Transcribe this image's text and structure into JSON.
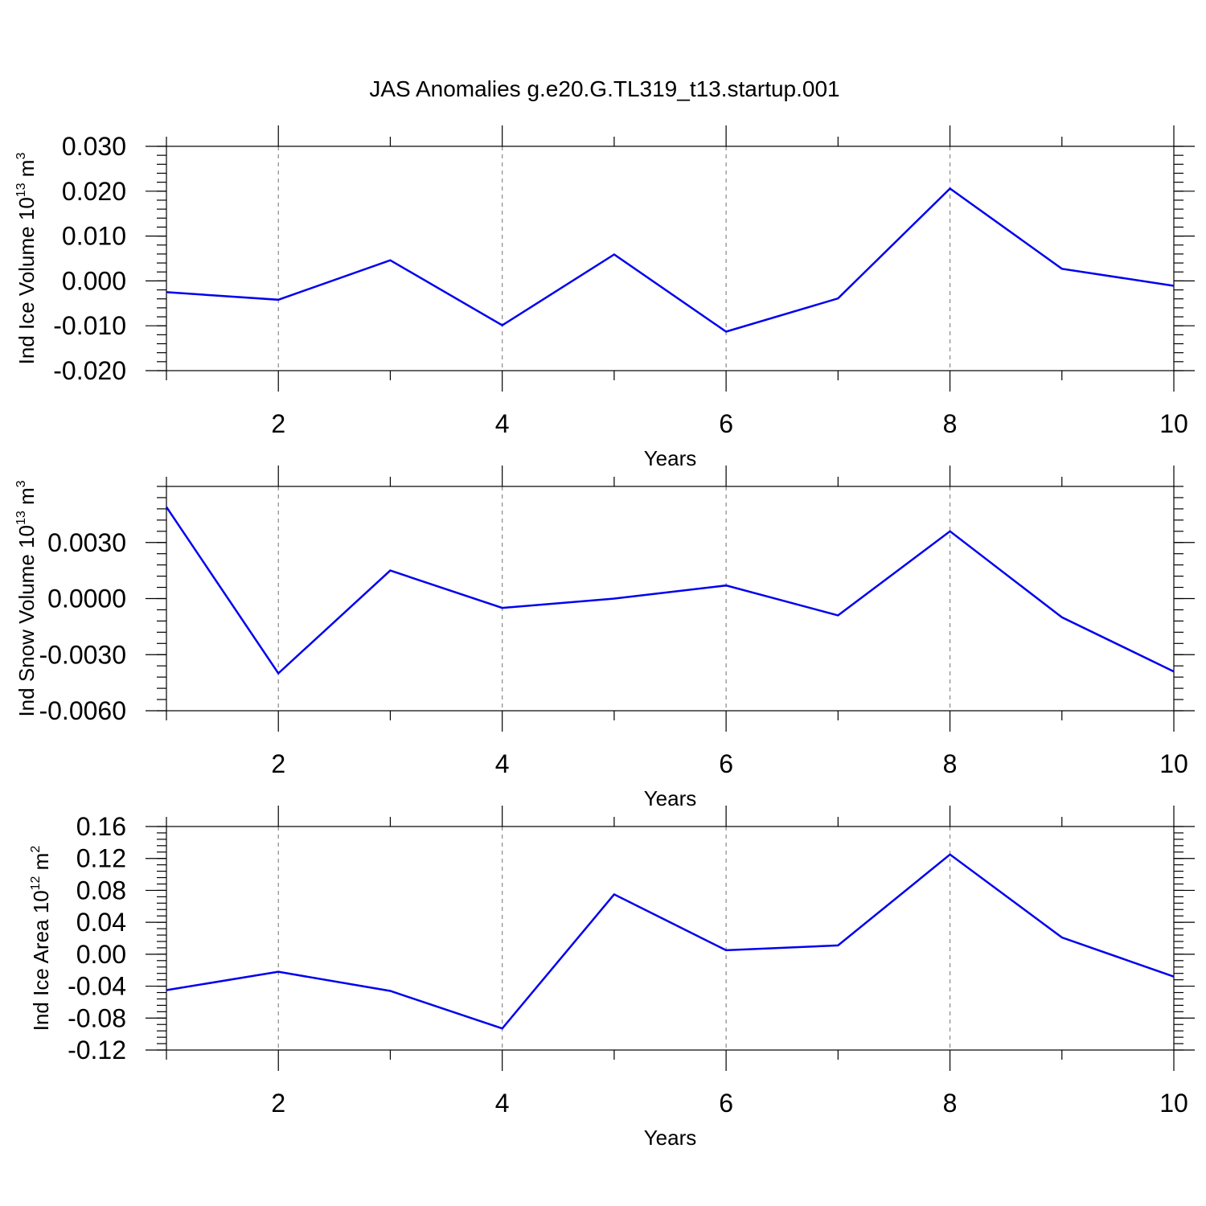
{
  "chart_data": [
    {
      "type": "line",
      "title": "JAS Anomalies g.e20.G.TL319_t13.startup.001",
      "xlabel": "Years",
      "ylabel_main": "Ind Ice Volume 10",
      "ylabel_exp": "13",
      "ylabel_unit": "m",
      "ylabel_unit_exp": "3",
      "xlim": [
        1,
        10
      ],
      "ylim": [
        -0.02,
        0.03
      ],
      "x_ticks": [
        2,
        4,
        6,
        8,
        10
      ],
      "x_tick_labels": [
        "2",
        "4",
        "6",
        "8",
        "10"
      ],
      "y_ticks": [
        -0.02,
        -0.01,
        0.0,
        0.01,
        0.02,
        0.03
      ],
      "y_tick_labels": [
        "-0.020",
        "-0.010",
        "0.000",
        "0.010",
        "0.020",
        "0.030"
      ],
      "y_minor_step": 0.002,
      "x": [
        1,
        2,
        3,
        4,
        5,
        6,
        7,
        8,
        9,
        10
      ],
      "series": [
        {
          "name": "Ind Ice Volume",
          "values": [
            -0.0025,
            -0.0042,
            0.0046,
            -0.0099,
            0.0059,
            -0.0113,
            -0.0039,
            0.0206,
            0.0027,
            -0.0011
          ]
        }
      ],
      "grid": "vertical-dashed"
    },
    {
      "type": "line",
      "xlabel": "Years",
      "ylabel_main": "Ind Snow Volume 10",
      "ylabel_exp": "13",
      "ylabel_unit": "m",
      "ylabel_unit_exp": "3",
      "xlim": [
        1,
        10
      ],
      "ylim": [
        -0.006,
        0.006
      ],
      "x_ticks": [
        2,
        4,
        6,
        8,
        10
      ],
      "x_tick_labels": [
        "2",
        "4",
        "6",
        "8",
        "10"
      ],
      "y_ticks": [
        -0.006,
        -0.003,
        0.0,
        0.003
      ],
      "y_tick_labels": [
        "-0.0060",
        "-0.0030",
        "0.0000",
        "0.0030"
      ],
      "y_minor_step": 0.0006,
      "x": [
        1,
        2,
        3,
        4,
        5,
        6,
        7,
        8,
        9,
        10
      ],
      "series": [
        {
          "name": "Ind Snow Volume",
          "values": [
            0.0049,
            -0.004,
            0.0015,
            -0.0005,
            0.0,
            0.0007,
            -0.0009,
            0.0036,
            -0.001,
            -0.0039
          ]
        }
      ],
      "grid": "vertical-dashed"
    },
    {
      "type": "line",
      "xlabel": "Years",
      "ylabel_main": "Ind Ice Area 10",
      "ylabel_exp": "12",
      "ylabel_unit": "m",
      "ylabel_unit_exp": "2",
      "xlim": [
        1,
        10
      ],
      "ylim": [
        -0.12,
        0.16
      ],
      "x_ticks": [
        2,
        4,
        6,
        8,
        10
      ],
      "x_tick_labels": [
        "2",
        "4",
        "6",
        "8",
        "10"
      ],
      "y_ticks": [
        -0.12,
        -0.08,
        -0.04,
        0.0,
        0.04,
        0.08,
        0.12,
        0.16
      ],
      "y_tick_labels": [
        "-0.12",
        "-0.08",
        "-0.04",
        "0.00",
        "0.04",
        "0.08",
        "0.12",
        "0.16"
      ],
      "y_minor_step": 0.008,
      "x": [
        1,
        2,
        3,
        4,
        5,
        6,
        7,
        8,
        9,
        10
      ],
      "series": [
        {
          "name": "Ind Ice Area",
          "values": [
            -0.045,
            -0.022,
            -0.046,
            -0.093,
            0.075,
            0.005,
            0.011,
            0.125,
            0.021,
            -0.028
          ]
        }
      ],
      "grid": "vertical-dashed"
    }
  ],
  "colors": {
    "series": "#0000ee",
    "grid": "#888888",
    "axes": "#000000"
  }
}
